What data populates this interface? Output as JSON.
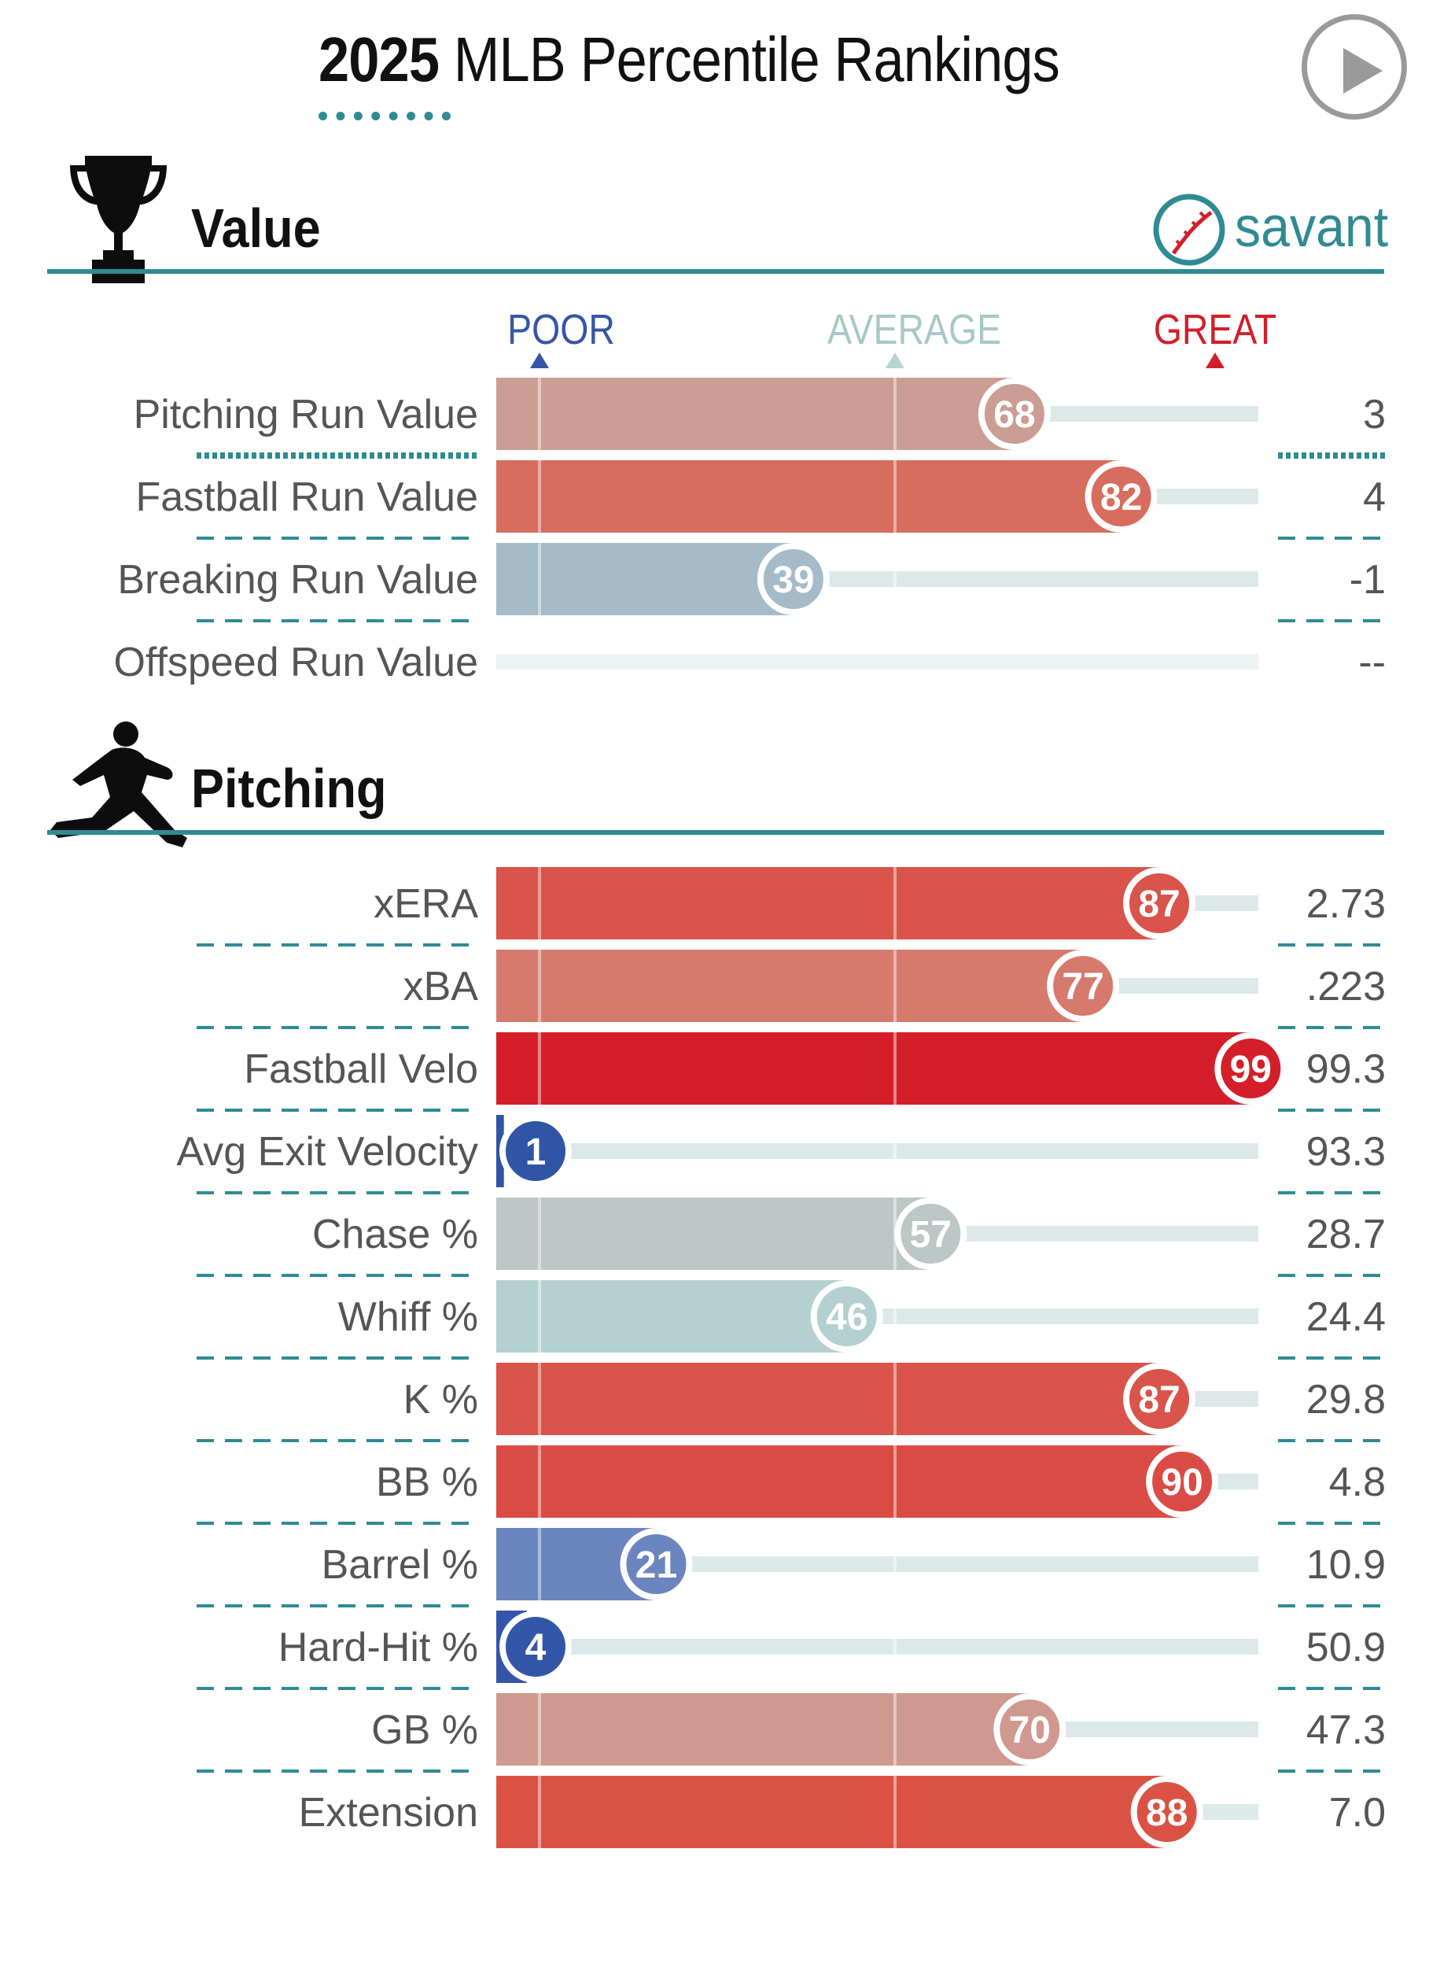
{
  "header": {
    "year": "2025",
    "title_rest": "MLB Percentile Rankings",
    "play_icon": "play-icon"
  },
  "brand": {
    "text": "savant",
    "icon": "baseball-icon"
  },
  "scale": {
    "poor": "POOR",
    "average": "AVERAGE",
    "great": "GREAT"
  },
  "colors": {
    "teal": "#2f8b93",
    "poor_marker": "#3856a6",
    "average_marker": "#b7d3d3",
    "great_marker": "#d11f2a"
  },
  "chart_data": [
    {
      "type": "bar",
      "title": "Value",
      "section_icon": "trophy-icon",
      "orientation": "horizontal",
      "xlim": [
        0,
        100
      ],
      "categories": [
        "Pitching Run Value",
        "Fastball Run Value",
        "Breaking Run Value",
        "Offspeed Run Value"
      ],
      "percentiles": [
        68,
        82,
        39,
        null
      ],
      "values": [
        "3",
        "4",
        "-1",
        "--"
      ],
      "bar_colors": [
        "#cc9d94",
        "#d76d5f",
        "#a5bcc8",
        null
      ]
    },
    {
      "type": "bar",
      "title": "Pitching",
      "section_icon": "pitcher-icon",
      "orientation": "horizontal",
      "xlim": [
        0,
        100
      ],
      "categories": [
        "xERA",
        "xBA",
        "Fastball Velo",
        "Avg Exit Velocity",
        "Chase %",
        "Whiff %",
        "K %",
        "BB %",
        "Barrel %",
        "Hard-Hit %",
        "GB %",
        "Extension"
      ],
      "percentiles": [
        87,
        77,
        99,
        1,
        57,
        46,
        87,
        90,
        21,
        4,
        70,
        88
      ],
      "values": [
        "2.73",
        ".223",
        "99.3",
        "93.3",
        "28.7",
        "24.4",
        "29.8",
        "4.8",
        "10.9",
        "50.9",
        "47.3",
        "7.0"
      ],
      "bar_colors": [
        "#d9544a",
        "#d77a6e",
        "#d41f2b",
        "#2f55a4",
        "#bcc7c6",
        "#b4d0d0",
        "#d9544a",
        "#d94b44",
        "#6b85bf",
        "#3456a9",
        "#cf9990",
        "#da5244"
      ]
    }
  ]
}
